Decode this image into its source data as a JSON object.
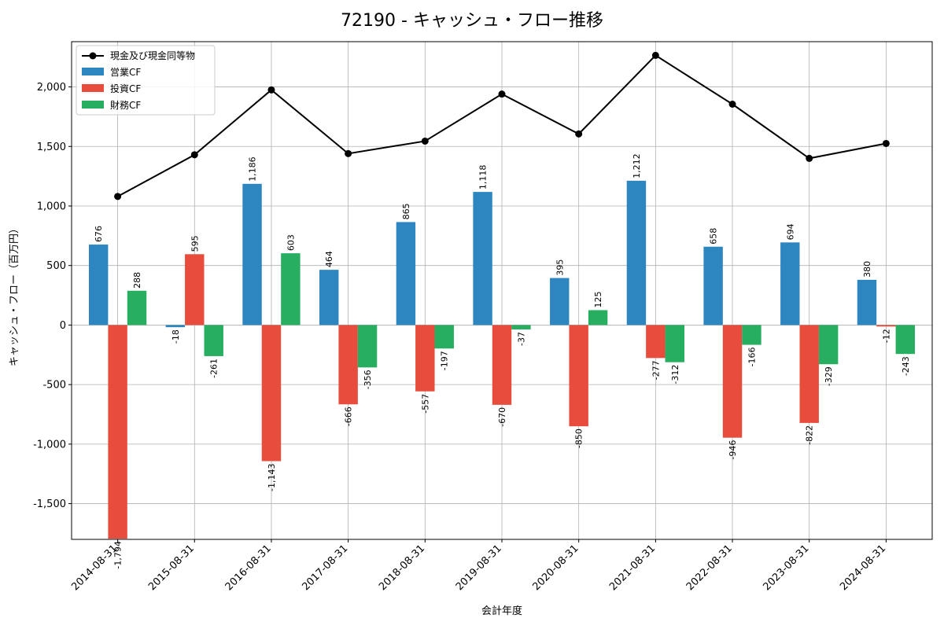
{
  "chart_data": {
    "type": "bar",
    "title": "72190 - キャッシュ・フロー推移",
    "xlabel": "会計年度",
    "ylabel": "キャッシュ・フロー（百万円）",
    "categories": [
      "2014-08-31",
      "2015-08-31",
      "2016-08-31",
      "2017-08-31",
      "2018-08-31",
      "2019-08-31",
      "2020-08-31",
      "2021-08-31",
      "2022-08-31",
      "2023-08-31",
      "2024-08-31"
    ],
    "series": [
      {
        "name": "営業CF",
        "kind": "bar",
        "color": "#2e86c1",
        "values": [
          676,
          -18,
          1186,
          464,
          865,
          1118,
          395,
          1212,
          658,
          694,
          380
        ]
      },
      {
        "name": "投資CF",
        "kind": "bar",
        "color": "#e74c3c",
        "values": [
          -1794,
          595,
          -1143,
          -666,
          -557,
          -670,
          -850,
          -277,
          -946,
          -822,
          -12
        ]
      },
      {
        "name": "財務CF",
        "kind": "bar",
        "color": "#27ae60",
        "values": [
          288,
          -261,
          603,
          -356,
          -197,
          -37,
          125,
          -312,
          -166,
          -329,
          -243
        ]
      },
      {
        "name": "現金及び現金同等物",
        "kind": "line",
        "color": "#000000",
        "values": [
          1080,
          1430,
          1975,
          1440,
          1545,
          1940,
          1605,
          2265,
          1855,
          1400,
          1525
        ]
      }
    ],
    "bar_labels": [
      [
        "676",
        "-18",
        "1,186",
        "464",
        "865",
        "1,118",
        "395",
        "1,212",
        "658",
        "694",
        "380"
      ],
      [
        "-1,794",
        "595",
        "-1,143",
        "-666",
        "-557",
        "-670",
        "-850",
        "-277",
        "-946",
        "-822",
        "-12"
      ],
      [
        "288",
        "-261",
        "603",
        "-356",
        "-197",
        "-37",
        "125",
        "-312",
        "-166",
        "-329",
        "-243"
      ]
    ],
    "yticks": [
      -1500,
      -1000,
      -500,
      0,
      500,
      1000,
      1500,
      2000
    ],
    "ytick_labels": [
      "-1,500",
      "-1,000",
      "-500",
      "0",
      "500",
      "1,000",
      "1,500",
      "2,000"
    ],
    "ylim": [
      -1800,
      2380
    ],
    "grid": true,
    "legend_position": "top-left"
  }
}
